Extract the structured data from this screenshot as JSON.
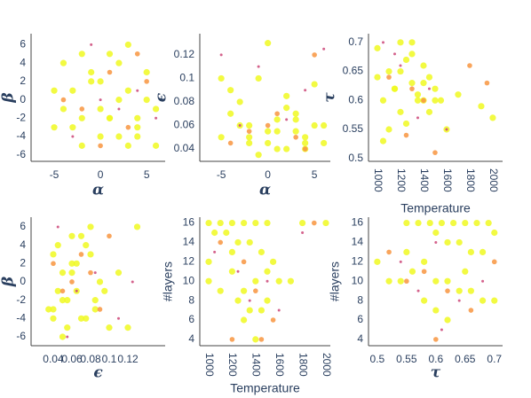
{
  "chart_data": [
    {
      "type": "scatter",
      "xlabel": "α",
      "ylabel": "β",
      "xlim": [
        -7.5,
        7
      ],
      "ylim": [
        -6.7,
        7.2
      ],
      "xticks": [
        -5,
        0,
        5
      ],
      "yticks": [
        -6,
        -4,
        -2,
        0,
        2,
        4,
        6
      ],
      "series": [
        {
          "color": "#f0f921",
          "x": [
            -5,
            -4,
            -3,
            -2,
            -1,
            0,
            1,
            2,
            3,
            4,
            5,
            6,
            -3,
            -1,
            1,
            3,
            4,
            5,
            -4,
            -2,
            0,
            2,
            4,
            6,
            -5,
            3,
            2,
            1,
            -2,
            0
          ],
          "values": [
            -3,
            4,
            1,
            -5,
            2,
            -1,
            5,
            -4,
            6,
            -2,
            0,
            -5,
            -3,
            3,
            -2,
            1,
            -4,
            3,
            -1,
            -2,
            2,
            4,
            -3,
            -1,
            1,
            -5,
            0,
            -2,
            5,
            -4
          ]
        },
        {
          "color": "#f89540",
          "x": [
            -2,
            1,
            3,
            5,
            -4,
            0,
            4
          ],
          "values": [
            -1,
            3,
            -3,
            2,
            0,
            -5,
            5
          ]
        },
        {
          "color": "#cc4778",
          "x": [
            -1,
            2,
            4,
            -3,
            6,
            0
          ],
          "values": [
            6,
            -1,
            1,
            -4,
            -2,
            0
          ]
        }
      ]
    },
    {
      "type": "scatter",
      "xlabel": "α",
      "ylabel": "ϵ",
      "xlim": [
        -7.3,
        6.7
      ],
      "ylim": [
        0.0295,
        0.138
      ],
      "xticks": [
        -5,
        0,
        5
      ],
      "yticks": [
        0.04,
        0.06,
        0.08,
        0.1,
        0.12
      ],
      "series": [
        {
          "color": "#f0f921",
          "x": [
            -5,
            -4,
            -3,
            -2,
            -1,
            0,
            1,
            2,
            3,
            4,
            5,
            6,
            -3,
            -1,
            1,
            3,
            4,
            5,
            -4,
            -2,
            0,
            2,
            4,
            6,
            -5,
            3,
            2,
            1,
            -2,
            0
          ],
          "values": [
            0.05,
            0.09,
            0.06,
            0.045,
            0.1,
            0.055,
            0.065,
            0.04,
            0.07,
            0.05,
            0.06,
            0.045,
            0.08,
            0.035,
            0.055,
            0.065,
            0.045,
            0.095,
            0.07,
            0.05,
            0.045,
            0.075,
            0.04,
            0.06,
            0.1,
            0.055,
            0.085,
            0.04,
            0.06,
            0.13
          ]
        },
        {
          "color": "#f89540",
          "x": [
            -2,
            1,
            3,
            5,
            -4,
            0,
            4
          ],
          "values": [
            0.055,
            0.07,
            0.05,
            0.12,
            0.045,
            0.06,
            0.04
          ]
        },
        {
          "color": "#cc4778",
          "x": [
            -1,
            2,
            4,
            -3,
            6,
            -5
          ],
          "values": [
            0.11,
            0.065,
            0.09,
            0.06,
            0.125,
            0.12
          ]
        }
      ]
    },
    {
      "type": "scatter",
      "xlabel": "Temperature",
      "ylabel": "τ",
      "xlim": [
        923,
        2085
      ],
      "ylim": [
        0.495,
        0.715
      ],
      "xticks": [
        1000,
        1200,
        1400,
        1600,
        1800,
        2000
      ],
      "yticks": [
        0.5,
        0.55,
        0.6,
        0.65,
        0.7
      ],
      "xtick_rotation": 90,
      "series": [
        {
          "color": "#f0f921",
          "x": [
            1000,
            1050,
            1100,
            1150,
            1200,
            1250,
            1300,
            1350,
            1400,
            1450,
            1500,
            1550,
            1100,
            1200,
            1300,
            1400,
            1450,
            1250,
            1350,
            1150,
            1050,
            1600,
            1700,
            1900,
            2000,
            1000,
            1300,
            1400,
            1200,
            1500
          ],
          "values": [
            0.69,
            0.6,
            0.65,
            0.62,
            0.58,
            0.67,
            0.63,
            0.61,
            0.6,
            0.64,
            0.62,
            0.6,
            0.55,
            0.7,
            0.68,
            0.66,
            0.58,
            0.56,
            0.6,
            0.62,
            0.53,
            0.55,
            0.61,
            0.59,
            0.57,
            0.64,
            0.7,
            0.63,
            0.65,
            0.6
          ]
        },
        {
          "color": "#f89540",
          "x": [
            1100,
            1300,
            1500,
            1800,
            1950,
            1250,
            1400
          ],
          "values": [
            0.64,
            0.62,
            0.51,
            0.66,
            0.63,
            0.54,
            0.6
          ]
        },
        {
          "color": "#cc4778",
          "x": [
            1050,
            1200,
            1450,
            1600,
            1350,
            1150
          ],
          "values": [
            0.7,
            0.66,
            0.62,
            0.55,
            0.57,
            0.68
          ]
        }
      ]
    },
    {
      "type": "scatter",
      "xlabel": "ϵ",
      "ylabel": "β",
      "xlim": [
        0.0162,
        0.16
      ],
      "ylim": [
        -6.97,
        7.06
      ],
      "xticks": [
        0.04,
        0.06,
        0.08,
        0.1,
        0.12
      ],
      "yticks": [
        -6,
        -4,
        -2,
        0,
        2,
        4,
        6
      ],
      "series": [
        {
          "color": "#f0f921",
          "x": [
            0.04,
            0.045,
            0.05,
            0.055,
            0.06,
            0.065,
            0.07,
            0.075,
            0.08,
            0.085,
            0.09,
            0.1,
            0.035,
            0.04,
            0.05,
            0.06,
            0.07,
            0.08,
            0.045,
            0.055,
            0.065,
            0.075,
            0.085,
            0.095,
            0.11,
            0.12,
            0.13,
            0.05,
            0.06,
            0.04
          ],
          "values": [
            -3,
            4,
            1,
            -5,
            2,
            -1,
            5,
            -4,
            6,
            -2,
            0,
            -5,
            -3,
            3,
            -2,
            1,
            -4,
            3,
            -1,
            -2,
            2,
            4,
            -3,
            -1,
            1,
            -5,
            6,
            -6,
            5,
            -4
          ]
        },
        {
          "color": "#f89540",
          "x": [
            0.05,
            0.07,
            0.09,
            0.04,
            0.06,
            0.1,
            0.08
          ],
          "values": [
            -1,
            3,
            -3,
            2,
            0,
            5,
            1
          ]
        },
        {
          "color": "#cc4778",
          "x": [
            0.045,
            0.065,
            0.085,
            0.11,
            0.125,
            0.055
          ],
          "values": [
            6,
            -1,
            1,
            -4,
            0,
            -6
          ]
        }
      ]
    },
    {
      "type": "scatter",
      "xlabel": "Temperature",
      "ylabel": "#layers",
      "xlim": [
        924,
        2038
      ],
      "ylim": [
        3.35,
        16.6
      ],
      "xticks": [
        1000,
        1200,
        1400,
        1600,
        1800,
        2000
      ],
      "yticks": [
        4,
        6,
        8,
        10,
        12,
        14,
        16
      ],
      "xtick_rotation": 90,
      "series": [
        {
          "color": "#f0f921",
          "x": [
            1000,
            1100,
            1200,
            1300,
            1400,
            1500,
            1050,
            1150,
            1250,
            1350,
            1450,
            1550,
            1000,
            1200,
            1400,
            1600,
            1300,
            1100,
            1500,
            1250,
            1350,
            1450,
            1700,
            1800,
            2000,
            1400,
            1200,
            1000,
            1300,
            1500
          ],
          "values": [
            16,
            16,
            16,
            16,
            16,
            16,
            15,
            15,
            14,
            14,
            13,
            12,
            12,
            11,
            10,
            10,
            9,
            9,
            8,
            8,
            7,
            7,
            10,
            16,
            16,
            4,
            13,
            10,
            6,
            11
          ]
        },
        {
          "color": "#f89540",
          "x": [
            1100,
            1300,
            1400,
            1550,
            1900,
            1200,
            1450
          ],
          "values": [
            14,
            12,
            9,
            6,
            16,
            4,
            4
          ]
        },
        {
          "color": "#cc4778",
          "x": [
            1050,
            1250,
            1350,
            1600,
            1800,
            1500
          ],
          "values": [
            13,
            11,
            8,
            7,
            15,
            10
          ]
        }
      ]
    },
    {
      "type": "scatter",
      "xlabel": "τ",
      "ylabel": "#layers",
      "xlim": [
        0.485,
        0.714
      ],
      "ylim": [
        3.35,
        16.6
      ],
      "xticks": [
        0.5,
        0.55,
        0.6,
        0.65,
        0.7
      ],
      "yticks": [
        4,
        6,
        8,
        10,
        12,
        14,
        16
      ],
      "series": [
        {
          "color": "#f0f921",
          "x": [
            0.55,
            0.57,
            0.59,
            0.61,
            0.63,
            0.65,
            0.67,
            0.69,
            0.7,
            0.6,
            0.62,
            0.64,
            0.66,
            0.68,
            0.58,
            0.56,
            0.54,
            0.52,
            0.5,
            0.6,
            0.62,
            0.64,
            0.66,
            0.68,
            0.7,
            0.58,
            0.6,
            0.62,
            0.65,
            0.55
          ],
          "values": [
            16,
            16,
            16,
            16,
            16,
            16,
            16,
            16,
            15,
            15,
            14,
            14,
            13,
            13,
            12,
            11,
            10,
            10,
            12,
            10,
            10,
            9,
            9,
            8,
            8,
            8,
            7,
            6,
            11,
            13
          ]
        },
        {
          "color": "#f89540",
          "x": [
            0.52,
            0.58,
            0.62,
            0.66,
            0.7,
            0.6,
            0.55
          ],
          "values": [
            13,
            11,
            9,
            7,
            12,
            4,
            10
          ]
        },
        {
          "color": "#cc4778",
          "x": [
            0.54,
            0.6,
            0.64,
            0.68,
            0.57,
            0.61
          ],
          "values": [
            12,
            14,
            8,
            10,
            9,
            5
          ]
        }
      ]
    }
  ]
}
